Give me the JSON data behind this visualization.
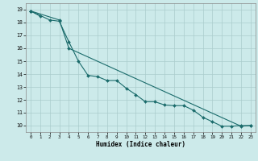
{
  "xlabel": "Humidex (Indice chaleur)",
  "xlim": [
    -0.5,
    23.5
  ],
  "ylim": [
    9.5,
    19.5
  ],
  "xticks": [
    0,
    1,
    2,
    3,
    4,
    5,
    6,
    7,
    8,
    9,
    10,
    11,
    12,
    13,
    14,
    15,
    16,
    17,
    18,
    19,
    20,
    21,
    22,
    23
  ],
  "yticks": [
    10,
    11,
    12,
    13,
    14,
    15,
    16,
    17,
    18,
    19
  ],
  "background_color": "#cceaea",
  "grid_color": "#aacccc",
  "line_color": "#1a6b6b",
  "lines": [
    {
      "x": [
        0,
        1
      ],
      "y": [
        18.9,
        18.5
      ]
    },
    {
      "x": [
        0,
        2,
        3,
        4,
        5,
        6,
        7,
        8,
        9,
        10,
        11,
        12,
        13,
        14,
        15,
        16,
        17,
        18,
        19,
        20,
        21,
        22,
        23
      ],
      "y": [
        18.9,
        18.2,
        18.1,
        16.5,
        15.0,
        13.9,
        13.8,
        13.5,
        13.5,
        12.9,
        12.4,
        11.85,
        11.85,
        11.6,
        11.55,
        11.55,
        11.2,
        10.65,
        10.3,
        9.95,
        9.95,
        10.0,
        10.0
      ]
    },
    {
      "x": [
        0,
        3,
        4,
        22,
        23
      ],
      "y": [
        18.9,
        18.2,
        16.0,
        9.95,
        10.0
      ]
    }
  ]
}
